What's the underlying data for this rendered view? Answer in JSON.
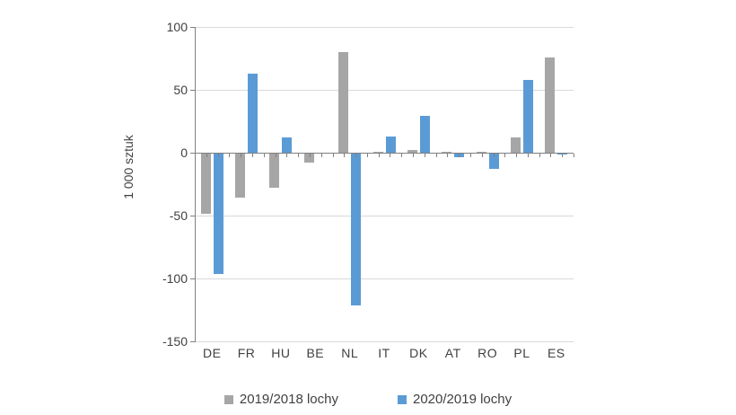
{
  "chart_data": {
    "type": "bar",
    "title": "",
    "xlabel": "",
    "ylabel": "1 000 sztuk",
    "categories": [
      "DE",
      "FR",
      "HU",
      "BE",
      "NL",
      "IT",
      "DK",
      "AT",
      "RO",
      "PL",
      "ES"
    ],
    "series": [
      {
        "name": "2019/2018 lochy",
        "color": "#a6a6a6",
        "values": [
          -48,
          -35,
          -27,
          -7,
          80,
          1,
          2,
          1,
          1,
          12,
          76
        ]
      },
      {
        "name": "2020/2019 lochy",
        "color": "#5b9bd5",
        "values": [
          -96,
          63,
          12,
          0,
          -121,
          13,
          29,
          -3,
          -12,
          58,
          -1
        ]
      }
    ],
    "ylim": [
      -150,
      100
    ],
    "yticks": [
      100,
      50,
      0,
      -50,
      -100,
      -150
    ],
    "grid": true,
    "legend_position": "bottom"
  },
  "colors": {
    "background": "#ffffff",
    "grid": "#d9d9d9",
    "axis": "#808080",
    "text": "#404040",
    "series_gray": "#a6a6a6",
    "series_blue": "#5b9bd5"
  }
}
